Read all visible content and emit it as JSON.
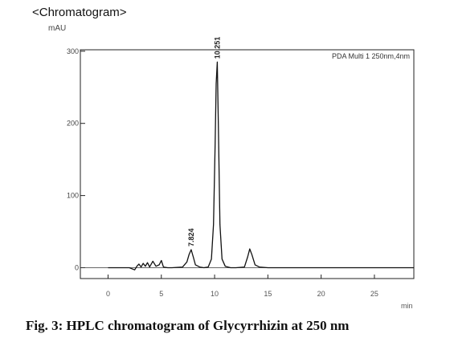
{
  "chart_data": {
    "type": "line",
    "title": "<Chromatogram>",
    "ylabel": "mAU",
    "xlabel": "min",
    "xlim": [
      -2.6,
      28.7
    ],
    "ylim": [
      -15,
      302
    ],
    "x_ticks": [
      0,
      5,
      10,
      15,
      20,
      25
    ],
    "y_ticks": [
      0,
      100,
      200,
      300
    ],
    "legend": "PDA Multi 1 250nm,4nm",
    "legend_position": "top-right",
    "grid": false,
    "series": [
      {
        "name": "PDA Multi 1 250nm,4nm",
        "x": [
          0.0,
          2.0,
          2.5,
          2.7,
          2.9,
          3.1,
          3.3,
          3.5,
          3.7,
          3.9,
          4.2,
          4.5,
          4.8,
          5.0,
          5.2,
          5.6,
          6.0,
          7.0,
          7.4,
          7.6,
          7.8,
          8.0,
          8.2,
          8.6,
          9.0,
          9.4,
          9.7,
          9.9,
          10.05,
          10.15,
          10.25,
          10.35,
          10.5,
          10.7,
          11.0,
          11.5,
          12.0,
          12.8,
          13.1,
          13.3,
          13.5,
          13.8,
          14.2,
          15.0,
          20.0,
          25.0,
          28.7
        ],
        "y": [
          0,
          0,
          -3,
          2,
          5,
          1,
          6,
          2,
          7,
          1,
          9,
          2,
          4,
          10,
          1,
          0,
          0,
          1,
          8,
          18,
          25,
          15,
          4,
          1,
          0,
          1,
          12,
          60,
          170,
          255,
          285,
          200,
          60,
          12,
          2,
          0,
          0,
          1,
          15,
          26,
          18,
          4,
          1,
          0,
          0,
          0,
          0
        ]
      }
    ],
    "peak_labels": [
      {
        "x": 7.824,
        "y": 25,
        "label": "7.824"
      },
      {
        "x": 10.251,
        "y": 285,
        "label": "10.251"
      }
    ]
  },
  "caption": "Fig. 3: HPLC chromatogram of Glycyrrhizin at 250 nm"
}
